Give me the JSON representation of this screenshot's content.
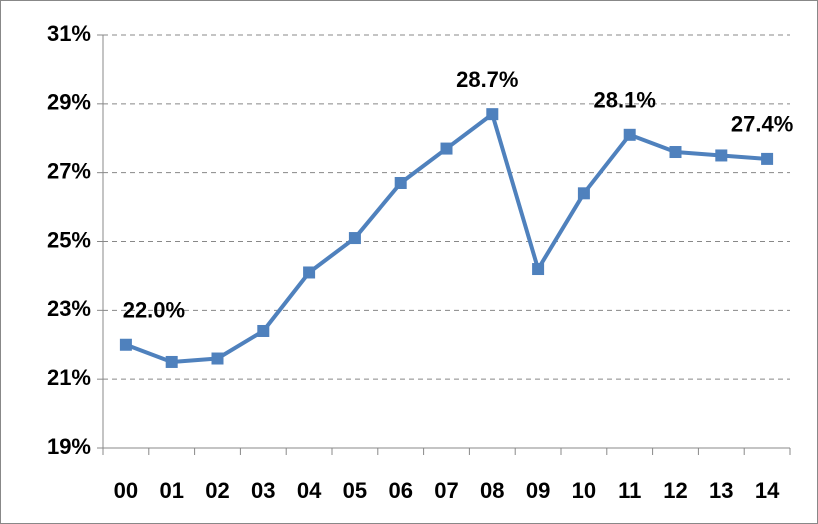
{
  "chart_data": {
    "type": "line",
    "categories": [
      "00",
      "01",
      "02",
      "03",
      "04",
      "05",
      "06",
      "07",
      "08",
      "09",
      "10",
      "11",
      "12",
      "13",
      "14"
    ],
    "values": [
      22.0,
      21.5,
      21.6,
      22.4,
      24.1,
      25.1,
      26.7,
      27.7,
      28.7,
      24.2,
      26.4,
      28.1,
      27.6,
      27.5,
      27.4
    ],
    "value_labels": [
      "22.0%",
      null,
      null,
      null,
      null,
      null,
      null,
      null,
      "28.7%",
      null,
      null,
      "28.1%",
      null,
      null,
      "27.4%"
    ],
    "color": "#4f81bd",
    "ylim": [
      19,
      31
    ],
    "yticks": [
      {
        "value": 19,
        "label": "19%"
      },
      {
        "value": 21,
        "label": "21%"
      },
      {
        "value": 23,
        "label": "23%"
      },
      {
        "value": 25,
        "label": "25%"
      },
      {
        "value": 27,
        "label": "27%"
      },
      {
        "value": 29,
        "label": "29%"
      },
      {
        "value": 31,
        "label": "31%"
      }
    ],
    "grid": true
  }
}
